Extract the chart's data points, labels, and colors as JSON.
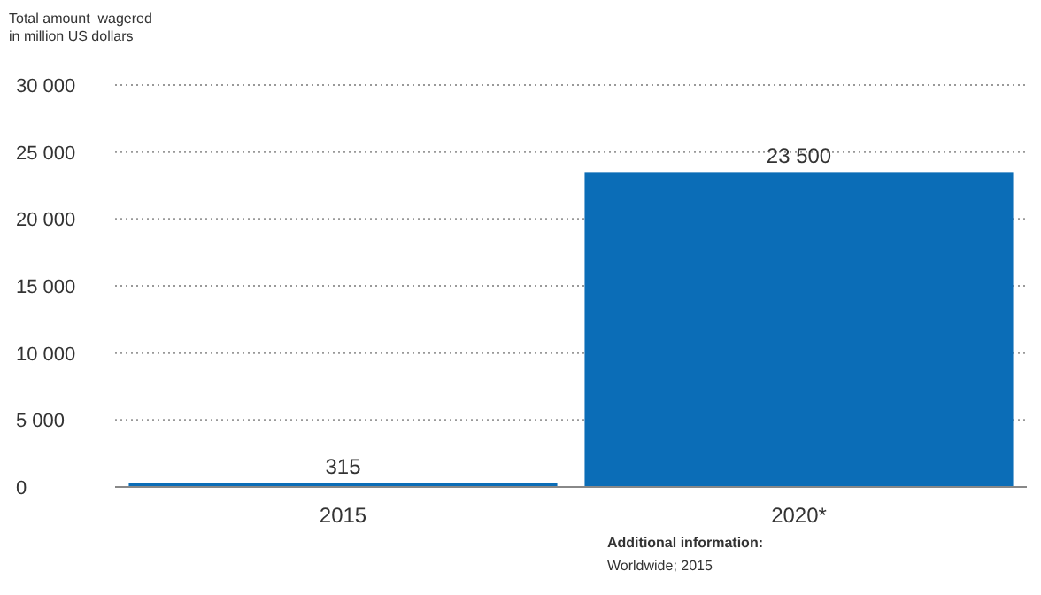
{
  "chart_data": {
    "type": "bar",
    "ylabel": "Total amount  wagered\nin million US dollars",
    "categories": [
      "2015",
      "2020*"
    ],
    "values": [
      315,
      23500
    ],
    "value_labels": [
      "315",
      "23 500"
    ],
    "color": "#0b6db7",
    "ylim": [
      0,
      30000
    ],
    "yticks": [
      {
        "value": 0,
        "label": "0"
      },
      {
        "value": 5000,
        "label": "5 000"
      },
      {
        "value": 10000,
        "label": "10 000"
      },
      {
        "value": 15000,
        "label": "15 000"
      },
      {
        "value": 20000,
        "label": "20 000"
      },
      {
        "value": 25000,
        "label": "25 000"
      },
      {
        "value": 30000,
        "label": "30 000"
      }
    ],
    "grid": "y",
    "annotations": [
      "Additional information:",
      "Worldwide; 2015"
    ]
  }
}
